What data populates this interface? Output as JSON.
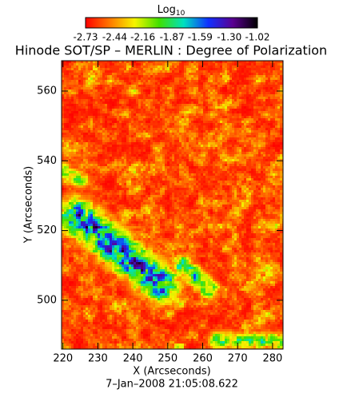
{
  "chart_data": {
    "type": "heatmap",
    "title": "Hinode SOT/SP – MERLIN : Degree of Polarization",
    "x_label": "X (Arcseconds)",
    "y_label": "Y (Arcseconds)",
    "annotation": "7–Jan–2008 21:05:08.622",
    "xlim": [
      219.6,
      283
    ],
    "ylim": [
      486,
      568.7
    ],
    "xticks": [
      220,
      230,
      240,
      250,
      260,
      270,
      280
    ],
    "yticks": [
      500,
      520,
      540,
      560
    ],
    "colorbar": {
      "label": "Log",
      "label_subscript": "10",
      "lim": [
        -2.73,
        -1.02
      ],
      "ticks": [
        -2.73,
        -2.44,
        -2.16,
        -1.87,
        -1.59,
        {
          "value": -1.3,
          "label": "-1.30"
        },
        -1.02
      ],
      "colormap": [
        "#ff0000",
        "#ff7a00",
        "#f5f500",
        "#40e000",
        "#00e0c0",
        "#1030ff",
        "#5a0090",
        "#000000"
      ]
    }
  }
}
